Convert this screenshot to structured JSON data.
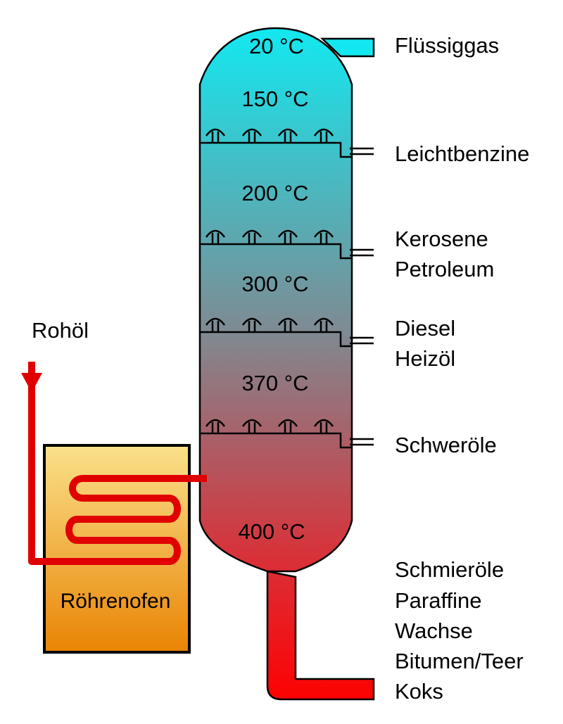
{
  "temperatures": [
    "20 °C",
    "150 °C",
    "200 °C",
    "300 °C",
    "370 °C",
    "400 °C"
  ],
  "products": {
    "p1": "Flüssiggas",
    "p2": "Leichtbenzine",
    "p3a": "Kerosene",
    "p3b": "Petroleum",
    "p4a": "Diesel",
    "p4b": "Heizöl",
    "p5": "Schweröle",
    "p6a": "Schmieröle",
    "p6b": "Paraffine",
    "p6c": "Wachse",
    "p6d": "Bitumen/Teer",
    "p6e": "Koks"
  },
  "input_label": "Rohöl",
  "furnace_label": "Röhrenofen",
  "colors": {
    "column_top": "#13e8f0",
    "column_mid": "#7f8a92",
    "column_bottom": "#e4202a",
    "outlet_bottom": "#fe0000",
    "furnace_top": "#fae18a",
    "furnace_bottom": "#e98404",
    "pipe": "#e00000"
  }
}
